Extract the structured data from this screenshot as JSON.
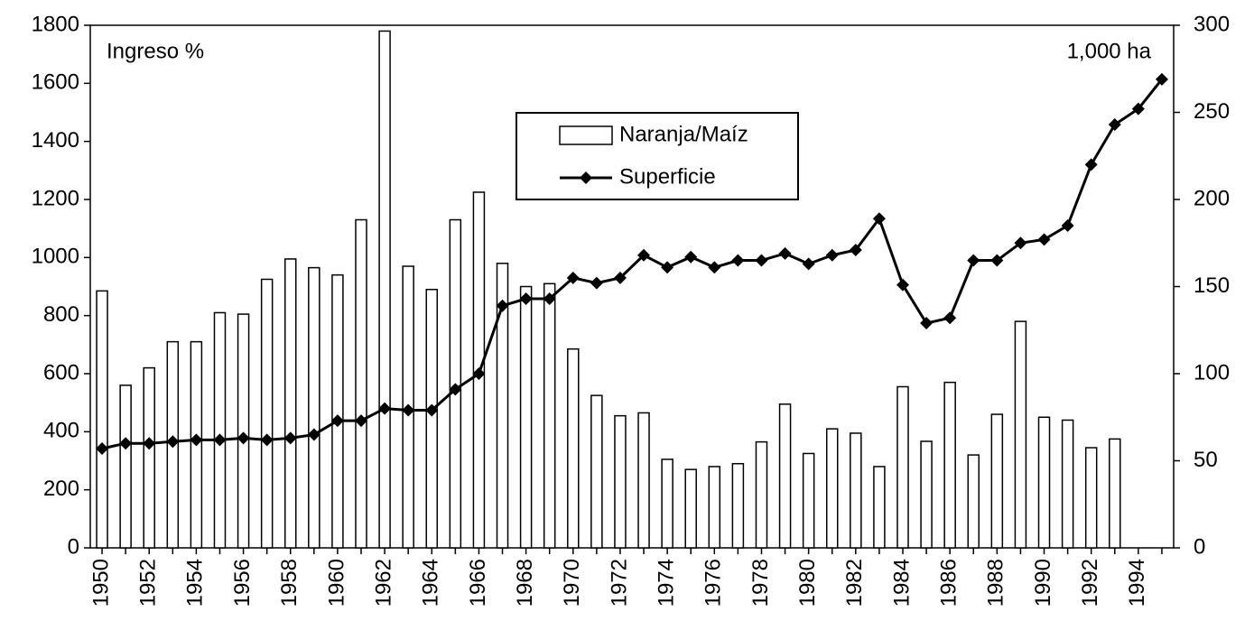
{
  "chart_data": {
    "type": "bar_line",
    "y_label": "Ingreso %",
    "y2_label": "1,000 ha",
    "categories": [
      "1950",
      null,
      "1952",
      null,
      "1954",
      null,
      "1956",
      null,
      "1958",
      null,
      "1960",
      null,
      "1962",
      null,
      "1964",
      null,
      "1966",
      null,
      "1968",
      null,
      "1970",
      null,
      "1972",
      null,
      "1974",
      null,
      "1976",
      null,
      "1978",
      null,
      "1980",
      null,
      "1982",
      null,
      "1984",
      null,
      "1986",
      null,
      "1988",
      null,
      "1990",
      null,
      "1992",
      null,
      "1994",
      null
    ],
    "series": [
      {
        "name": "Naranja/Maíz",
        "type": "bar",
        "axis": "y",
        "color": "#ffffff",
        "values": [
          885,
          560,
          620,
          710,
          710,
          810,
          805,
          925,
          995,
          965,
          940,
          1130,
          1780,
          970,
          890,
          1130,
          1225,
          980,
          900,
          910,
          685,
          525,
          455,
          465,
          305,
          270,
          280,
          290,
          365,
          495,
          325,
          410,
          395,
          280,
          555,
          367,
          570,
          320,
          460,
          780,
          450,
          440,
          345,
          375,
          null,
          null
        ]
      },
      {
        "name": "Superficie",
        "type": "line",
        "axis": "y2",
        "color": "#000000",
        "values": [
          57,
          60,
          60,
          61,
          62,
          62,
          63,
          62,
          63,
          65,
          73,
          73,
          80,
          79,
          79,
          91,
          100,
          139,
          143,
          143,
          155,
          152,
          155,
          168,
          161,
          167,
          161,
          165,
          165,
          169,
          163,
          168,
          171,
          189,
          151,
          129,
          132,
          165,
          165,
          175,
          177,
          185,
          220,
          243,
          252,
          269
        ]
      }
    ],
    "ylim": [
      0,
      1800
    ],
    "yticks": [
      0,
      200,
      400,
      600,
      800,
      1000,
      1200,
      1400,
      1600,
      1800
    ],
    "y2lim": [
      0,
      300
    ],
    "y2ticks": [
      0,
      50,
      100,
      150,
      200,
      250,
      300
    ]
  }
}
